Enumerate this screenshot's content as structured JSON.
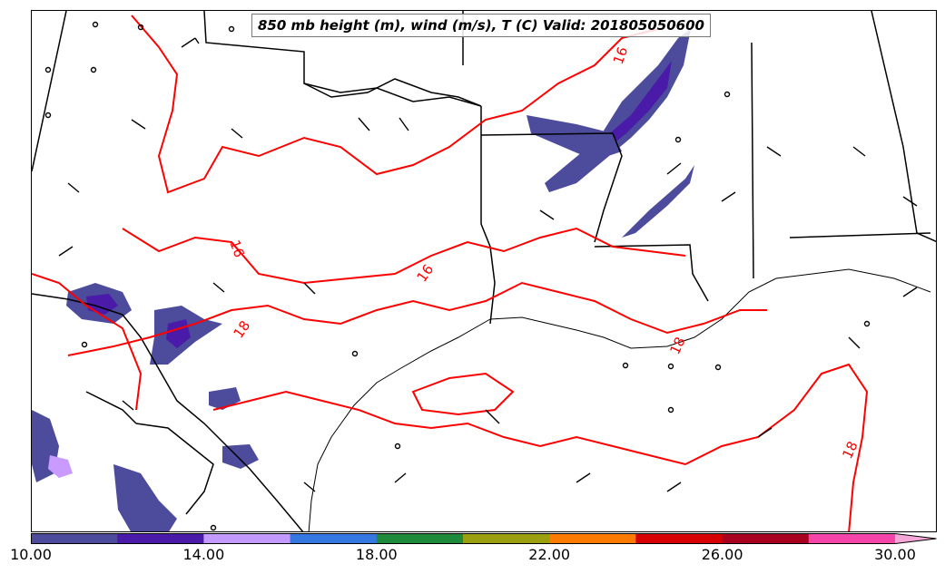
{
  "title": "850 mb height (m), wind (m/s), T (C) Valid: 201805050600",
  "contour_labels": [
    "16",
    "16",
    "16",
    "18",
    "18",
    "18"
  ],
  "colors": {
    "contour": "#ff0000",
    "borders": "#000000",
    "shading_low": "#4d4b9c",
    "shading_mid": "#5a1fb0",
    "shading_high": "#c99aff"
  },
  "colorbar": {
    "min": 10,
    "max": 30,
    "extend": "max",
    "colors": [
      "#4d4b9c",
      "#4a1aa8",
      "#c39aff",
      "#3577e0",
      "#1f8a3b",
      "#9aa010",
      "#ff7a00",
      "#d60000",
      "#a8001f",
      "#f545a8",
      "#f7a6d8"
    ],
    "tick_labels": [
      "10.00",
      "14.00",
      "18.00",
      "22.00",
      "26.00",
      "30.00"
    ],
    "tick_values": [
      10,
      14,
      18,
      22,
      26,
      30
    ]
  }
}
